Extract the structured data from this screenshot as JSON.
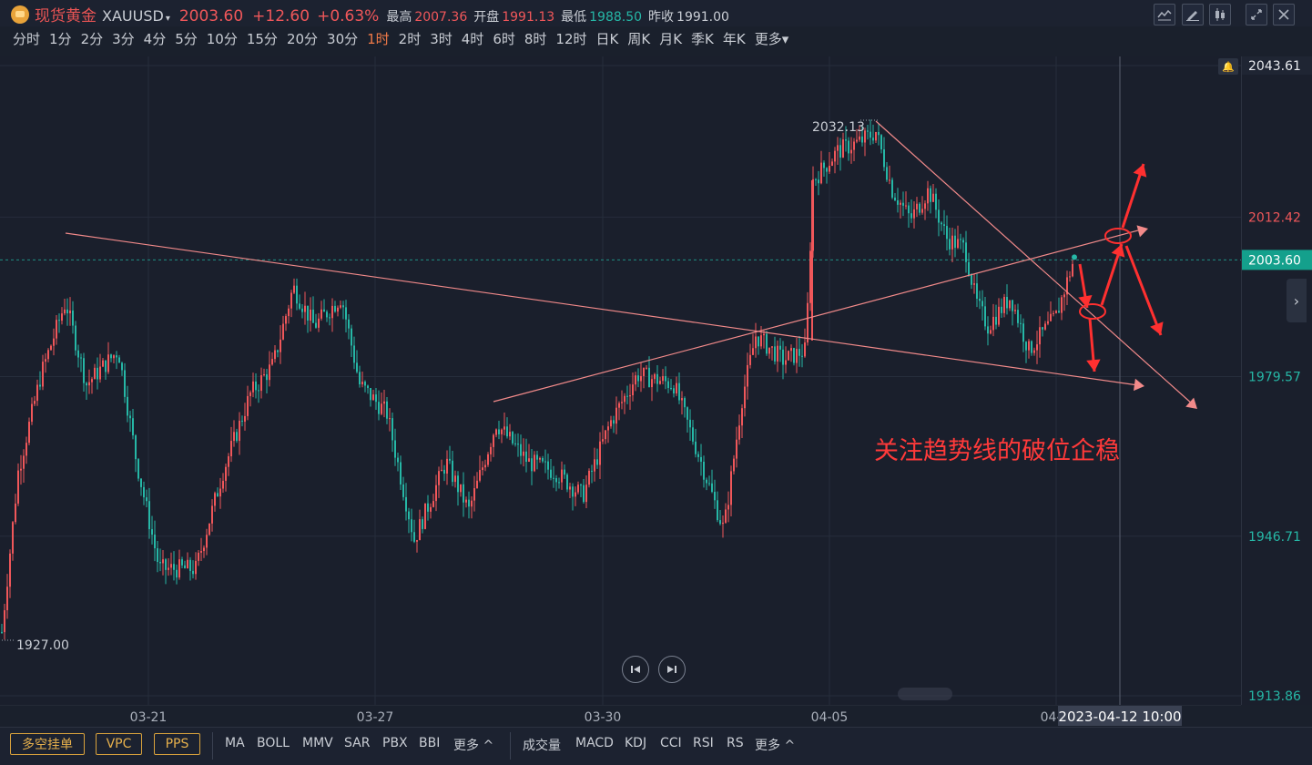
{
  "header": {
    "name": "现货黄金",
    "code": "XAUUSD",
    "caret": "▾",
    "price": "2003.60",
    "change": "+12.60",
    "change_pct": "+0.63%",
    "high_label": "最高",
    "high": "2007.36",
    "open_label": "开盘",
    "open": "1991.13",
    "low_label": "最低",
    "low": "1988.50",
    "prev_label": "昨收",
    "prev": "1991.00"
  },
  "toolbar_icons": [
    "line-tool-icon",
    "pen-icon",
    "candle-settings-icon",
    "fullscreen-icon",
    "close-icon"
  ],
  "periods": [
    "分时",
    "1分",
    "2分",
    "3分",
    "4分",
    "5分",
    "10分",
    "15分",
    "20分",
    "30分",
    "1时",
    "2时",
    "3时",
    "4时",
    "6时",
    "8时",
    "12时",
    "日K",
    "周K",
    "月K",
    "季K",
    "年K",
    "更多▾"
  ],
  "active_period": "1时",
  "price_axis": {
    "top": "2043.61",
    "labels": [
      {
        "value": "2012.42",
        "color": "#f0575a"
      },
      {
        "value": "1979.57",
        "color": "#26b7a6"
      },
      {
        "value": "1946.71",
        "color": "#26b7a6"
      },
      {
        "value": "1913.86",
        "color": "#26b7a6"
      }
    ],
    "current": "2003.60"
  },
  "date_axis": [
    "03-21",
    "03-27",
    "03-30",
    "04-05",
    "04-"
  ],
  "crosshair_time": "2023-04-12 10:00",
  "chart_annotations": {
    "high_label": "2032.13",
    "low_label": "1927.00",
    "note": "关注趋势线的破位企稳"
  },
  "chart_data": {
    "type": "candlestick",
    "symbol": "XAUUSD",
    "interval": "1时",
    "ylim": [
      1913.86,
      2043.61
    ],
    "y_ticks": [
      2043.61,
      2012.42,
      1979.57,
      1946.71,
      1913.86
    ],
    "x_ticks": [
      "03-21",
      "03-27",
      "03-30",
      "04-05",
      "04-"
    ],
    "current_price": 2003.6,
    "range_high": 2032.13,
    "range_low": 1927.0,
    "grid": true
  },
  "bottom": {
    "boxes": [
      "多空挂单",
      "VPC",
      "PPS"
    ],
    "main_inds": [
      "MA",
      "BOLL",
      "MMV",
      "SAR",
      "PBX",
      "BBI",
      "更多 ^"
    ],
    "sub_inds": [
      "成交量",
      "MACD",
      "KDJ",
      "CCI",
      "RSI",
      "RS",
      "更多 ^"
    ]
  },
  "colors": {
    "up": "#f0575a",
    "down": "#26b7a6",
    "trendline": "#f28a8a",
    "arrow": "#ff3030"
  }
}
